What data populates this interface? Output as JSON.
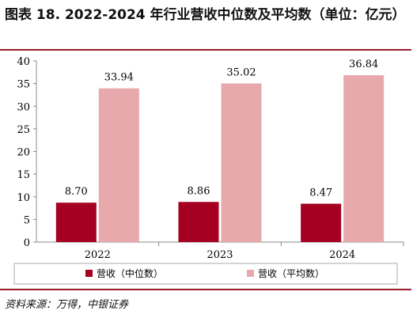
{
  "title": "图表 18. 2022-2024 年行业营收中位数及平均数（单位：亿元）",
  "source": "资料来源：万得，中银证券",
  "colors": {
    "median": "#a50021",
    "mean": "#e8a9ad",
    "frame": "#9b1b2b",
    "axis": "#888888"
  },
  "chart_data": {
    "type": "bar",
    "categories": [
      "2022",
      "2023",
      "2024"
    ],
    "series": [
      {
        "name": "营收（中位数）",
        "values": [
          8.7,
          8.86,
          8.47
        ],
        "labels": [
          "8.70",
          "8.86",
          "8.47"
        ]
      },
      {
        "name": "营收（平均数）",
        "values": [
          33.94,
          35.02,
          36.84
        ],
        "labels": [
          "33.94",
          "35.02",
          "36.84"
        ]
      }
    ],
    "yticks": [
      "0",
      "5",
      "10",
      "15",
      "20",
      "25",
      "30",
      "35",
      "40"
    ],
    "ylim": [
      0,
      40
    ],
    "xlabel": "",
    "ylabel": "",
    "legend_placement": "bottom",
    "grid": false
  }
}
